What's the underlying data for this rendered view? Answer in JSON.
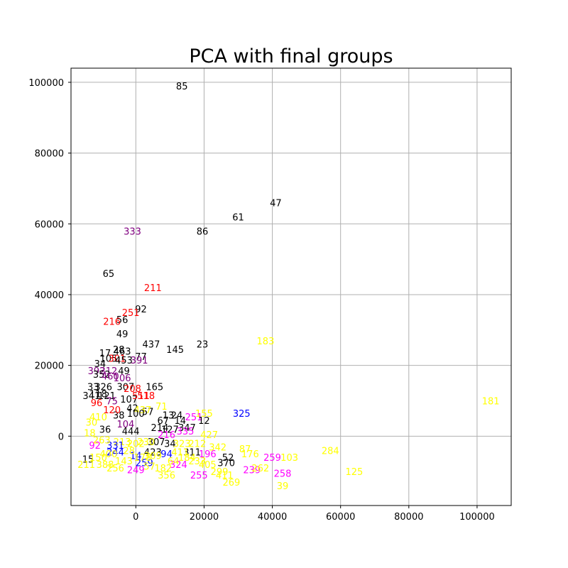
{
  "chart_data": {
    "type": "scatter",
    "title": "PCA with final groups",
    "xlabel": "",
    "ylabel": "",
    "xlim": [
      -19000,
      110000
    ],
    "ylim": [
      -19600,
      104000
    ],
    "grid": true,
    "marker": "text-label",
    "x_ticks": [
      {
        "value": 0,
        "label": "0"
      },
      {
        "value": 20000,
        "label": "20000"
      },
      {
        "value": 40000,
        "label": "40000"
      },
      {
        "value": 60000,
        "label": "60000"
      },
      {
        "value": 80000,
        "label": "80000"
      },
      {
        "value": 100000,
        "label": "100000"
      }
    ],
    "y_ticks": [
      {
        "value": 0,
        "label": "0"
      },
      {
        "value": 20000,
        "label": "20000"
      },
      {
        "value": 40000,
        "label": "40000"
      },
      {
        "value": 60000,
        "label": "60000"
      },
      {
        "value": 80000,
        "label": "80000"
      },
      {
        "value": 100000,
        "label": "100000"
      }
    ],
    "colors": {
      "black": "#000000",
      "red": "#ff0000",
      "purple": "#800080",
      "blue": "#0000ff",
      "yellow": "#ffff00",
      "magenta": "#ff00ff"
    },
    "points": [
      {
        "label": "85",
        "x": 13500,
        "y": 99000,
        "color": "black"
      },
      {
        "label": "47",
        "x": 41000,
        "y": 66000,
        "color": "black"
      },
      {
        "label": "61",
        "x": 30000,
        "y": 62000,
        "color": "black"
      },
      {
        "label": "86",
        "x": 19500,
        "y": 58000,
        "color": "black"
      },
      {
        "label": "333",
        "x": -1000,
        "y": 58000,
        "color": "purple"
      },
      {
        "label": "65",
        "x": -8000,
        "y": 46000,
        "color": "black"
      },
      {
        "label": "211",
        "x": 5000,
        "y": 42000,
        "color": "red"
      },
      {
        "label": "92",
        "x": 1500,
        "y": 36000,
        "color": "black"
      },
      {
        "label": "251",
        "x": -1500,
        "y": 35000,
        "color": "red"
      },
      {
        "label": "56",
        "x": -4000,
        "y": 33000,
        "color": "black"
      },
      {
        "label": "216",
        "x": -7000,
        "y": 32500,
        "color": "red"
      },
      {
        "label": "49",
        "x": -4000,
        "y": 29000,
        "color": "black"
      },
      {
        "label": "183",
        "x": 38000,
        "y": 27000,
        "color": "yellow"
      },
      {
        "label": "437",
        "x": 4500,
        "y": 26000,
        "color": "black"
      },
      {
        "label": "23",
        "x": 19500,
        "y": 26000,
        "color": "black"
      },
      {
        "label": "145",
        "x": 11500,
        "y": 24500,
        "color": "black"
      },
      {
        "label": "28",
        "x": -5000,
        "y": 24500,
        "color": "black"
      },
      {
        "label": "463",
        "x": -4000,
        "y": 24000,
        "color": "black"
      },
      {
        "label": "17",
        "x": -9000,
        "y": 23500,
        "color": "black"
      },
      {
        "label": "77",
        "x": 1500,
        "y": 22500,
        "color": "black"
      },
      {
        "label": "105",
        "x": -8000,
        "y": 22000,
        "color": "black"
      },
      {
        "label": "301",
        "x": -5500,
        "y": 22000,
        "color": "red"
      },
      {
        "label": "453",
        "x": -3500,
        "y": 21500,
        "color": "black"
      },
      {
        "label": "391",
        "x": 1000,
        "y": 21500,
        "color": "purple"
      },
      {
        "label": "34",
        "x": -10500,
        "y": 20500,
        "color": "black"
      },
      {
        "label": "392",
        "x": -11500,
        "y": 18500,
        "color": "purple"
      },
      {
        "label": "312",
        "x": -8000,
        "y": 18500,
        "color": "purple"
      },
      {
        "label": "49",
        "x": -3500,
        "y": 18500,
        "color": "black"
      },
      {
        "label": "352",
        "x": -10000,
        "y": 17500,
        "color": "black"
      },
      {
        "label": "460",
        "x": -7500,
        "y": 17000,
        "color": "purple"
      },
      {
        "label": "106",
        "x": -4000,
        "y": 16500,
        "color": "purple"
      },
      {
        "label": "165",
        "x": 5500,
        "y": 14000,
        "color": "black"
      },
      {
        "label": "33",
        "x": -12500,
        "y": 14000,
        "color": "black"
      },
      {
        "label": "326",
        "x": -9500,
        "y": 14000,
        "color": "black"
      },
      {
        "label": "307",
        "x": -3000,
        "y": 14000,
        "color": "black"
      },
      {
        "label": "208",
        "x": -1000,
        "y": 13500,
        "color": "red"
      },
      {
        "label": "341",
        "x": -13000,
        "y": 11500,
        "color": "black"
      },
      {
        "label": "118",
        "x": -11000,
        "y": 12000,
        "color": "black"
      },
      {
        "label": "121",
        "x": -8500,
        "y": 11500,
        "color": "black"
      },
      {
        "label": "181",
        "x": 104000,
        "y": 10000,
        "color": "yellow"
      },
      {
        "label": "107",
        "x": -2000,
        "y": 10500,
        "color": "black"
      },
      {
        "label": "518",
        "x": 3000,
        "y": 11500,
        "color": "red"
      },
      {
        "label": "511",
        "x": 1500,
        "y": 11500,
        "color": "red"
      },
      {
        "label": "75",
        "x": -7000,
        "y": 10000,
        "color": "purple"
      },
      {
        "label": "96",
        "x": -11500,
        "y": 9500,
        "color": "red"
      },
      {
        "label": "71",
        "x": 7500,
        "y": 8500,
        "color": "yellow"
      },
      {
        "label": "42",
        "x": -1000,
        "y": 8000,
        "color": "black"
      },
      {
        "label": "57",
        "x": 3500,
        "y": 7000,
        "color": "black"
      },
      {
        "label": "437",
        "x": 2000,
        "y": 7500,
        "color": "yellow"
      },
      {
        "label": "325",
        "x": 31000,
        "y": 6500,
        "color": "blue"
      },
      {
        "label": "155",
        "x": 20000,
        "y": 6500,
        "color": "yellow"
      },
      {
        "label": "13",
        "x": 9500,
        "y": 6000,
        "color": "black"
      },
      {
        "label": "24",
        "x": 12000,
        "y": 6000,
        "color": "black"
      },
      {
        "label": "251",
        "x": 17000,
        "y": 5500,
        "color": "magenta"
      },
      {
        "label": "14",
        "x": 13000,
        "y": 4500,
        "color": "black"
      },
      {
        "label": "12",
        "x": 20000,
        "y": 4500,
        "color": "black"
      },
      {
        "label": "67",
        "x": 8000,
        "y": 4500,
        "color": "black"
      },
      {
        "label": "100",
        "x": 0,
        "y": 6500,
        "color": "black"
      },
      {
        "label": "38",
        "x": -5000,
        "y": 6000,
        "color": "black"
      },
      {
        "label": "104",
        "x": -3000,
        "y": 3500,
        "color": "purple"
      },
      {
        "label": "214",
        "x": 7000,
        "y": 2500,
        "color": "black"
      },
      {
        "label": "127",
        "x": 10000,
        "y": 2000,
        "color": "black"
      },
      {
        "label": "347",
        "x": 15000,
        "y": 2500,
        "color": "black"
      },
      {
        "label": "335",
        "x": 14500,
        "y": 1500,
        "color": "magenta"
      },
      {
        "label": "427",
        "x": 21500,
        "y": 500,
        "color": "yellow"
      },
      {
        "label": "342",
        "x": 24000,
        "y": -3000,
        "color": "yellow"
      },
      {
        "label": "87",
        "x": 32000,
        "y": -3500,
        "color": "yellow"
      },
      {
        "label": "176",
        "x": 33500,
        "y": -5000,
        "color": "yellow"
      },
      {
        "label": "196",
        "x": 21000,
        "y": -5000,
        "color": "magenta"
      },
      {
        "label": "52",
        "x": 27000,
        "y": -6000,
        "color": "black"
      },
      {
        "label": "259",
        "x": 40000,
        "y": -6000,
        "color": "magenta"
      },
      {
        "label": "103",
        "x": 45000,
        "y": -6000,
        "color": "yellow"
      },
      {
        "label": "284",
        "x": 57000,
        "y": -4000,
        "color": "yellow"
      },
      {
        "label": "370",
        "x": 26500,
        "y": -7500,
        "color": "black"
      },
      {
        "label": "311",
        "x": 16500,
        "y": -4500,
        "color": "black"
      },
      {
        "label": "423",
        "x": 5000,
        "y": -4500,
        "color": "black"
      },
      {
        "label": "34",
        "x": 10000,
        "y": -2000,
        "color": "black"
      },
      {
        "label": "307",
        "x": 6000,
        "y": -1500,
        "color": "black"
      },
      {
        "label": "216",
        "x": 9000,
        "y": 500,
        "color": "magenta"
      },
      {
        "label": "323",
        "x": 13500,
        "y": -2000,
        "color": "yellow"
      },
      {
        "label": "239",
        "x": 34000,
        "y": -9500,
        "color": "magenta"
      },
      {
        "label": "262",
        "x": 36500,
        "y": -9000,
        "color": "yellow"
      },
      {
        "label": "125",
        "x": 64000,
        "y": -10000,
        "color": "yellow"
      },
      {
        "label": "258",
        "x": 43000,
        "y": -10500,
        "color": "magenta"
      },
      {
        "label": "39",
        "x": 43000,
        "y": -14000,
        "color": "yellow"
      },
      {
        "label": "269",
        "x": 28000,
        "y": -13000,
        "color": "yellow"
      },
      {
        "label": "255",
        "x": 18500,
        "y": -11000,
        "color": "magenta"
      },
      {
        "label": "356",
        "x": 9000,
        "y": -11000,
        "color": "yellow"
      },
      {
        "label": "324",
        "x": 12500,
        "y": -8000,
        "color": "magenta"
      },
      {
        "label": "233",
        "x": 18000,
        "y": -7000,
        "color": "yellow"
      },
      {
        "label": "411",
        "x": 26000,
        "y": -11000,
        "color": "yellow"
      },
      {
        "label": "299",
        "x": 24500,
        "y": -10000,
        "color": "yellow"
      },
      {
        "label": "94",
        "x": 9000,
        "y": -5000,
        "color": "blue"
      },
      {
        "label": "259",
        "x": 2500,
        "y": -7500,
        "color": "blue"
      },
      {
        "label": "14",
        "x": 0,
        "y": -5500,
        "color": "blue"
      },
      {
        "label": "244",
        "x": -6000,
        "y": -4500,
        "color": "blue"
      },
      {
        "label": "249",
        "x": 0,
        "y": -9500,
        "color": "magenta"
      },
      {
        "label": "256",
        "x": -6000,
        "y": -9000,
        "color": "yellow"
      },
      {
        "label": "182",
        "x": 8000,
        "y": -9000,
        "color": "yellow"
      },
      {
        "label": "30",
        "x": -13000,
        "y": 4000,
        "color": "yellow"
      },
      {
        "label": "36",
        "x": -9000,
        "y": 2000,
        "color": "black"
      },
      {
        "label": "410",
        "x": -11000,
        "y": 5500,
        "color": "yellow"
      },
      {
        "label": "120",
        "x": -7000,
        "y": 7500,
        "color": "red"
      },
      {
        "label": "18",
        "x": -13500,
        "y": 1000,
        "color": "yellow"
      },
      {
        "label": "213",
        "x": -4000,
        "y": -1500,
        "color": "yellow"
      },
      {
        "label": "92",
        "x": -12000,
        "y": -2500,
        "color": "magenta"
      },
      {
        "label": "15",
        "x": -14000,
        "y": -6500,
        "color": "black"
      },
      {
        "label": "150",
        "x": -11000,
        "y": -6000,
        "color": "yellow"
      },
      {
        "label": "211",
        "x": -14500,
        "y": -8000,
        "color": "yellow"
      },
      {
        "label": "388",
        "x": -9000,
        "y": -8000,
        "color": "yellow"
      },
      {
        "label": "143",
        "x": -3500,
        "y": -7000,
        "color": "yellow"
      },
      {
        "label": "57",
        "x": 4000,
        "y": -8500,
        "color": "yellow"
      },
      {
        "label": "444",
        "x": -1500,
        "y": 1500,
        "color": "black"
      },
      {
        "label": "331",
        "x": -6000,
        "y": -2500,
        "color": "blue"
      },
      {
        "label": "202",
        "x": 0,
        "y": -2000,
        "color": "yellow"
      },
      {
        "label": "230",
        "x": 3000,
        "y": -1500,
        "color": "yellow"
      },
      {
        "label": "184",
        "x": 15000,
        "y": -6000,
        "color": "yellow"
      },
      {
        "label": "411",
        "x": 13000,
        "y": -4500,
        "color": "yellow"
      },
      {
        "label": "400",
        "x": -8000,
        "y": -5000,
        "color": "yellow"
      },
      {
        "label": "178",
        "x": 2000,
        "y": -6000,
        "color": "yellow"
      },
      {
        "label": "212",
        "x": 18000,
        "y": -2000,
        "color": "yellow"
      },
      {
        "label": "263",
        "x": -10000,
        "y": -1000,
        "color": "yellow"
      },
      {
        "label": "309",
        "x": 5000,
        "y": -5500,
        "color": "yellow"
      },
      {
        "label": "405",
        "x": 21000,
        "y": -8000,
        "color": "yellow"
      },
      {
        "label": "28",
        "x": -2000,
        "y": -4000,
        "color": "yellow"
      },
      {
        "label": "64",
        "x": 11000,
        "y": -7000,
        "color": "yellow"
      }
    ]
  }
}
